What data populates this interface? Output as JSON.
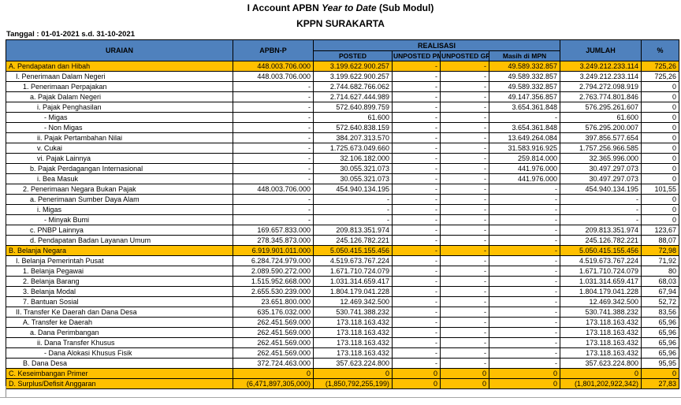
{
  "header": {
    "title_prefix": "I Account APBN ",
    "title_italic": "Year to Date",
    "title_suffix": " (Sub Modul)",
    "subtitle": "KPPN SURAKARTA",
    "date_label": "Tanggal : 01-01-2021  s.d. 31-10-2021"
  },
  "colors": {
    "header_blue": "#4F81BD",
    "highlight_orange": "#FFC000"
  },
  "table": {
    "columns": {
      "uraian": "URAIAN",
      "apbnp": "APBN-P",
      "realisasi_group": "REALISASI",
      "posted": "POSTED",
      "unposted_pm": "UNPOSTED PM",
      "unposted_gr": "UNPOSTED GR",
      "mpn": "Masih di MPN",
      "jumlah": "JUMLAH",
      "pct": "%"
    },
    "rows": [
      {
        "label": "A. Pendapatan dan Hibah",
        "indent": 0,
        "highlight": true,
        "cells": [
          "448.003.706.000",
          "3.199.622.900.257",
          "-",
          "-",
          "49.589.332.857",
          "3.249.212.233.114",
          "725,26"
        ]
      },
      {
        "label": "I. Penerimaan Dalam Negeri",
        "indent": 1,
        "highlight": false,
        "cells": [
          "448.003.706.000",
          "3.199.622.900.257",
          "-",
          "-",
          "49.589.332.857",
          "3.249.212.233.114",
          "725,26"
        ]
      },
      {
        "label": "1. Penerimaan Perpajakan",
        "indent": 2,
        "highlight": false,
        "cells": [
          "-",
          "2.744.682.766.062",
          "-",
          "-",
          "49.589.332.857",
          "2.794.272.098.919",
          "0"
        ]
      },
      {
        "label": "a. Pajak Dalam Negeri",
        "indent": 3,
        "highlight": false,
        "cells": [
          "-",
          "2.714.627.444.989",
          "-",
          "-",
          "49.147.356.857",
          "2.763.774.801.846",
          "0"
        ]
      },
      {
        "label": "i. Pajak Penghasilan",
        "indent": 4,
        "highlight": false,
        "cells": [
          "-",
          "572.640.899.759",
          "-",
          "-",
          "3.654.361.848",
          "576.295.261.607",
          "0"
        ]
      },
      {
        "label": "- Migas",
        "indent": 5,
        "highlight": false,
        "cells": [
          "-",
          "61.600",
          "-",
          "-",
          "-",
          "61.600",
          "0"
        ]
      },
      {
        "label": "- Non Migas",
        "indent": 5,
        "highlight": false,
        "cells": [
          "-",
          "572.640.838.159",
          "-",
          "-",
          "3.654.361.848",
          "576.295.200.007",
          "0"
        ]
      },
      {
        "label": "ii. Pajak Pertambahan Nilai",
        "indent": 4,
        "highlight": false,
        "cells": [
          "-",
          "384.207.313.570",
          "-",
          "-",
          "13.649.264.084",
          "397.856.577.654",
          "0"
        ]
      },
      {
        "label": "v. Cukai",
        "indent": 4,
        "highlight": false,
        "cells": [
          "-",
          "1.725.673.049.660",
          "-",
          "-",
          "31.583.916.925",
          "1.757.256.966.585",
          "0"
        ]
      },
      {
        "label": "vi. Pajak Lainnya",
        "indent": 4,
        "highlight": false,
        "cells": [
          "-",
          "32.106.182.000",
          "-",
          "-",
          "259.814.000",
          "32.365.996.000",
          "0"
        ]
      },
      {
        "label": "b. Pajak Perdagangan Internasional",
        "indent": 3,
        "highlight": false,
        "cells": [
          "-",
          "30.055.321.073",
          "-",
          "-",
          "441.976.000",
          "30.497.297.073",
          "0"
        ]
      },
      {
        "label": "i. Bea Masuk",
        "indent": 4,
        "highlight": false,
        "cells": [
          "-",
          "30.055.321.073",
          "-",
          "-",
          "441.976.000",
          "30.497.297.073",
          "0"
        ]
      },
      {
        "label": "2. Penerimaan Negara Bukan Pajak",
        "indent": 2,
        "highlight": false,
        "cells": [
          "448.003.706.000",
          "454.940.134.195",
          "-",
          "-",
          "-",
          "454.940.134.195",
          "101,55"
        ]
      },
      {
        "label": "a. Penerimaan Sumber Daya Alam",
        "indent": 3,
        "highlight": false,
        "cells": [
          "-",
          "-",
          "-",
          "-",
          "-",
          "-",
          "0"
        ]
      },
      {
        "label": "i. Migas",
        "indent": 4,
        "highlight": false,
        "cells": [
          "-",
          "-",
          "-",
          "-",
          "-",
          "-",
          "0"
        ]
      },
      {
        "label": "- Minyak Bumi",
        "indent": 5,
        "highlight": false,
        "cells": [
          "-",
          "-",
          "-",
          "-",
          "-",
          "-",
          "0"
        ]
      },
      {
        "label": "c. PNBP Lainnya",
        "indent": 3,
        "highlight": false,
        "cells": [
          "169.657.833.000",
          "209.813.351.974",
          "-",
          "-",
          "-",
          "209.813.351.974",
          "123,67"
        ]
      },
      {
        "label": "d. Pendapatan Badan Layanan Umum",
        "indent": 3,
        "highlight": false,
        "cells": [
          "278.345.873.000",
          "245.126.782.221",
          "-",
          "-",
          "-",
          "245.126.782.221",
          "88,07"
        ]
      },
      {
        "label": "B. Belanja Negara",
        "indent": 0,
        "highlight": true,
        "cells": [
          "6.919.901.011.000",
          "5.050.415.155.456",
          "-",
          "-",
          "-",
          "5.050.415.155.456",
          "72,98"
        ]
      },
      {
        "label": "I. Belanja Pemerintah Pusat",
        "indent": 1,
        "highlight": false,
        "cells": [
          "6.284.724.979.000",
          "4.519.673.767.224",
          "-",
          "-",
          "-",
          "4.519.673.767.224",
          "71,92"
        ]
      },
      {
        "label": "1. Belanja Pegawai",
        "indent": 2,
        "highlight": false,
        "cells": [
          "2.089.590.272.000",
          "1.671.710.724.079",
          "-",
          "-",
          "-",
          "1.671.710.724.079",
          "80"
        ]
      },
      {
        "label": "2. Belanja Barang",
        "indent": 2,
        "highlight": false,
        "cells": [
          "1.515.952.668.000",
          "1.031.314.659.417",
          "-",
          "-",
          "-",
          "1.031.314.659.417",
          "68,03"
        ]
      },
      {
        "label": "3. Belanja Modal",
        "indent": 2,
        "highlight": false,
        "cells": [
          "2.655.530.239.000",
          "1.804.179.041.228",
          "-",
          "-",
          "-",
          "1.804.179.041.228",
          "67,94"
        ]
      },
      {
        "label": "7. Bantuan Sosial",
        "indent": 2,
        "highlight": false,
        "cells": [
          "23.651.800.000",
          "12.469.342.500",
          "-",
          "-",
          "-",
          "12.469.342.500",
          "52,72"
        ]
      },
      {
        "label": "II. Transfer Ke Daerah dan Dana Desa",
        "indent": 1,
        "highlight": false,
        "cells": [
          "635.176.032.000",
          "530.741.388.232",
          "-",
          "-",
          "-",
          "530.741.388.232",
          "83,56"
        ]
      },
      {
        "label": "A. Transfer ke Daerah",
        "indent": 2,
        "highlight": false,
        "cells": [
          "262.451.569.000",
          "173.118.163.432",
          "-",
          "-",
          "-",
          "173.118.163.432",
          "65,96"
        ]
      },
      {
        "label": "a. Dana Perimbangan",
        "indent": 3,
        "highlight": false,
        "cells": [
          "262.451.569.000",
          "173.118.163.432",
          "-",
          "-",
          "-",
          "173.118.163.432",
          "65,96"
        ]
      },
      {
        "label": "ii. Dana Transfer Khusus",
        "indent": 4,
        "highlight": false,
        "cells": [
          "262.451.569.000",
          "173.118.163.432",
          "-",
          "-",
          "-",
          "173.118.163.432",
          "65,96"
        ]
      },
      {
        "label": "- Dana Alokasi Khusus Fisik",
        "indent": 5,
        "highlight": false,
        "cells": [
          "262.451.569.000",
          "173.118.163.432",
          "-",
          "-",
          "-",
          "173.118.163.432",
          "65,96"
        ]
      },
      {
        "label": "B. Dana Desa",
        "indent": 2,
        "highlight": false,
        "cells": [
          "372.724.463.000",
          "357.623.224.800",
          "-",
          "-",
          "-",
          "357.623.224.800",
          "95,95"
        ]
      },
      {
        "label": "C. Keseimbangan Primer",
        "indent": 0,
        "highlight": true,
        "cells": [
          "0",
          "0",
          "0",
          "0",
          "0",
          "0",
          "0"
        ]
      },
      {
        "label": "D. Surplus/Defisit Anggaran",
        "indent": 0,
        "highlight": true,
        "cells": [
          "(6,471,897,305,000)",
          "(1,850,792,255,199)",
          "0",
          "0",
          "0",
          "(1,801,202,922,342)",
          "27,83"
        ]
      }
    ]
  }
}
